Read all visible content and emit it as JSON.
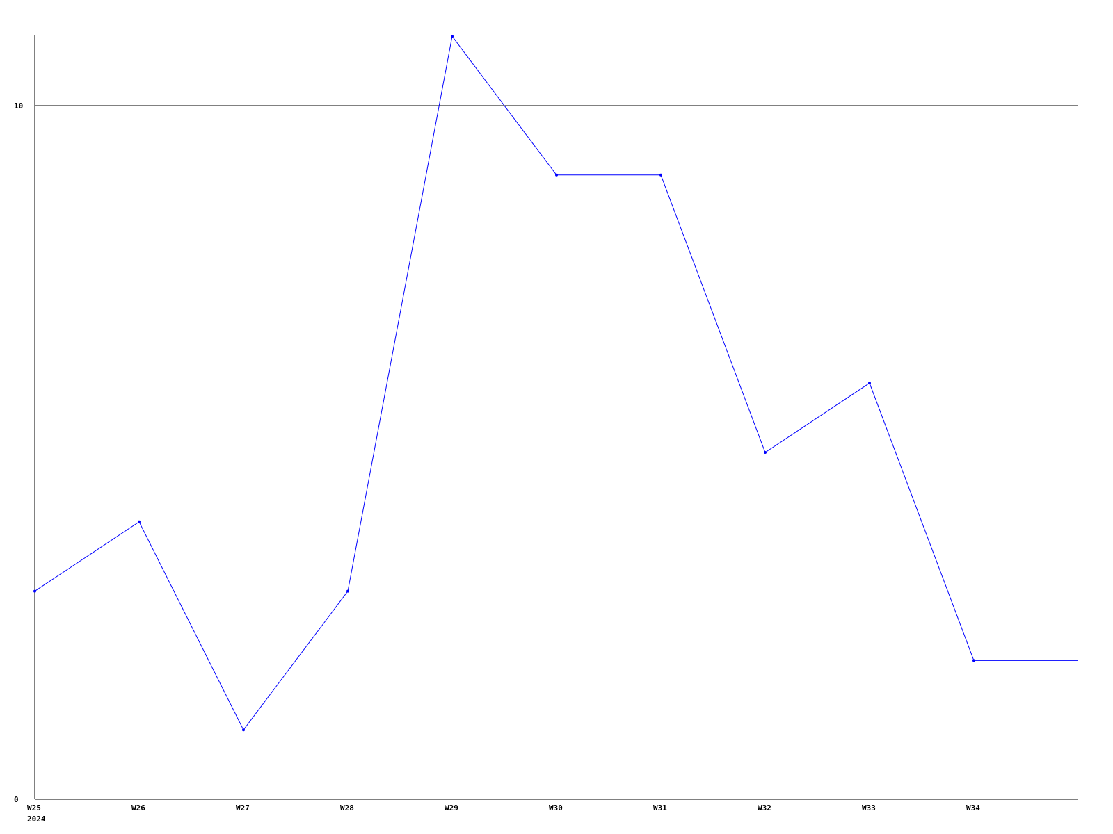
{
  "chart_data": {
    "type": "line",
    "categories": [
      "W25",
      "W26",
      "W27",
      "W28",
      "W29",
      "W30",
      "W31",
      "W32",
      "W33",
      "W34"
    ],
    "x_sublabel": "2024",
    "series": [
      {
        "values": [
          3,
          4,
          1,
          3,
          11,
          9,
          9,
          5,
          6,
          2
        ]
      }
    ],
    "ylim": [
      0,
      11
    ],
    "yticks": [
      "0",
      "10"
    ],
    "grid": "horizontal line at 10",
    "line_color": "#0000ff",
    "axis_color": "#000000"
  }
}
